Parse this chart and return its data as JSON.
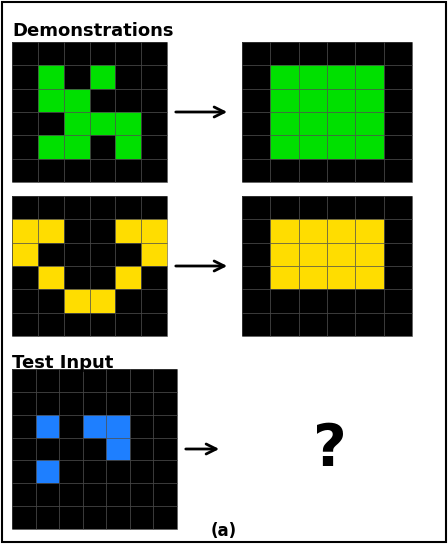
{
  "title": "(a)",
  "demo_label": "Demonstrations",
  "test_label": "Test Input",
  "background_color": "#ffffff",
  "black": "#000000",
  "green": "#00e000",
  "yellow": "#ffdd00",
  "blue": "#1e7fff",
  "grid_line_color": "#555555",
  "grid1": {
    "rows": 6,
    "cols": 6,
    "cells": [
      [
        0,
        0,
        0,
        0,
        0,
        0
      ],
      [
        0,
        1,
        0,
        1,
        0,
        0
      ],
      [
        0,
        1,
        1,
        0,
        0,
        0
      ],
      [
        0,
        0,
        1,
        1,
        1,
        0
      ],
      [
        0,
        1,
        1,
        0,
        1,
        0
      ],
      [
        0,
        0,
        0,
        0,
        0,
        0
      ]
    ],
    "color": "#00e000"
  },
  "grid2": {
    "rows": 6,
    "cols": 6,
    "cells": [
      [
        0,
        0,
        0,
        0,
        0,
        0
      ],
      [
        0,
        1,
        1,
        1,
        1,
        0
      ],
      [
        0,
        1,
        1,
        1,
        1,
        0
      ],
      [
        0,
        1,
        1,
        1,
        1,
        0
      ],
      [
        0,
        1,
        1,
        1,
        1,
        0
      ],
      [
        0,
        0,
        0,
        0,
        0,
        0
      ]
    ],
    "color": "#00e000"
  },
  "grid3": {
    "rows": 6,
    "cols": 6,
    "cells": [
      [
        0,
        0,
        0,
        0,
        0,
        0
      ],
      [
        1,
        1,
        0,
        0,
        1,
        1
      ],
      [
        1,
        0,
        0,
        0,
        0,
        1
      ],
      [
        0,
        1,
        0,
        0,
        1,
        0
      ],
      [
        0,
        0,
        1,
        1,
        0,
        0
      ],
      [
        0,
        0,
        0,
        0,
        0,
        0
      ]
    ],
    "color": "#ffdd00"
  },
  "grid4": {
    "rows": 6,
    "cols": 6,
    "cells": [
      [
        0,
        0,
        0,
        0,
        0,
        0
      ],
      [
        0,
        1,
        1,
        1,
        1,
        0
      ],
      [
        0,
        1,
        1,
        1,
        1,
        0
      ],
      [
        0,
        1,
        1,
        1,
        1,
        0
      ],
      [
        0,
        0,
        0,
        0,
        0,
        0
      ],
      [
        0,
        0,
        0,
        0,
        0,
        0
      ]
    ],
    "color": "#ffdd00"
  },
  "grid5": {
    "rows": 7,
    "cols": 7,
    "cells": [
      [
        0,
        0,
        0,
        0,
        0,
        0,
        0
      ],
      [
        0,
        0,
        0,
        0,
        0,
        0,
        0
      ],
      [
        0,
        1,
        0,
        1,
        1,
        0,
        0
      ],
      [
        0,
        0,
        0,
        0,
        1,
        0,
        0
      ],
      [
        0,
        1,
        0,
        0,
        0,
        0,
        0
      ],
      [
        0,
        0,
        0,
        0,
        0,
        0,
        0
      ],
      [
        0,
        0,
        0,
        0,
        0,
        0,
        0
      ]
    ],
    "color": "#1e7fff"
  },
  "fig_width": 4.48,
  "fig_height": 5.44,
  "dpi": 100
}
